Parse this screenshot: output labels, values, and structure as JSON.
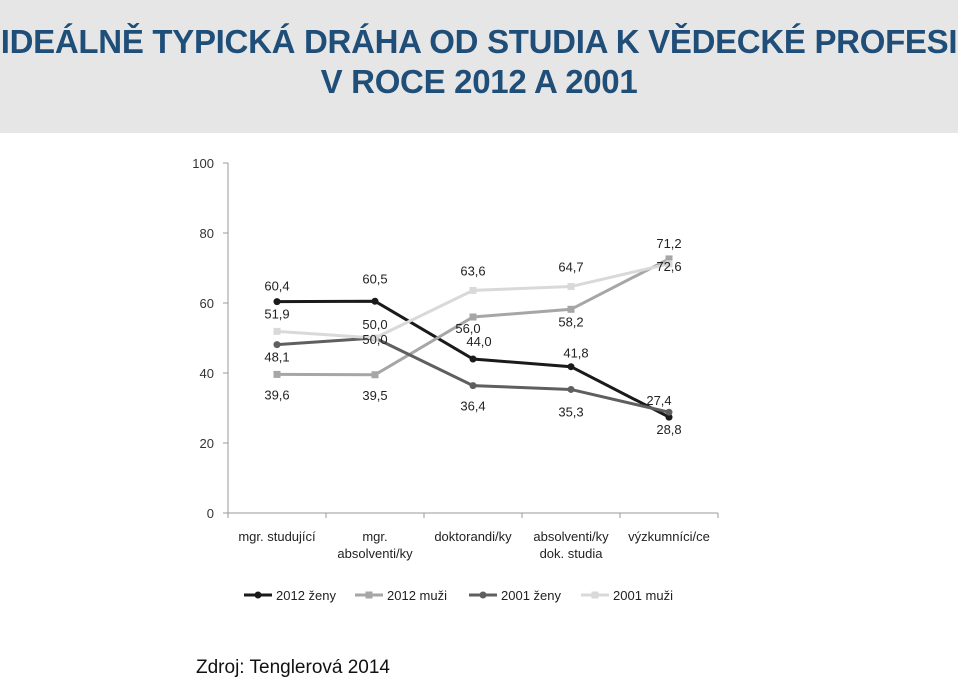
{
  "title": {
    "line1": "IDEÁLNĚ TYPICKÁ DRÁHA OD STUDIA K VĚDECKÉ PROFESI",
    "line2": "V ROCE 2012 A 2001"
  },
  "source": "Zdroj: Tenglerová 2014",
  "colors": {
    "header_bg": "#e6e6e6",
    "title": "#1f4e79",
    "series_2012_zeny": "#1a1a1a",
    "series_2012_muzi": "#a6a6a6",
    "series_2001_zeny": "#5f5f5f",
    "series_2001_muzi": "#d9d9d9"
  },
  "chart_data": {
    "type": "line",
    "title": "IDEÁLNĚ TYPICKÁ DRÁHA OD STUDIA K VĚDECKÉ PROFESI V ROCE 2012 A 2001",
    "xlabel": "",
    "ylabel": "",
    "ylim": [
      0,
      100
    ],
    "yticks": [
      0,
      20,
      40,
      60,
      80,
      100
    ],
    "grid": false,
    "legend": "bottom",
    "categories": [
      [
        "mgr. studující"
      ],
      [
        "mgr.",
        "absolventi/ky"
      ],
      [
        "doktorandi/ky"
      ],
      [
        "absolventi/ky",
        "dok. studia"
      ],
      [
        "výzkumníci/ce"
      ]
    ],
    "series": [
      {
        "name": "2012 ženy",
        "marker": "circle",
        "values": [
          60.4,
          60.5,
          44.0,
          41.8,
          27.4
        ],
        "labels": [
          "60,4",
          "60,5",
          "44,0",
          "41,8",
          "27,4"
        ]
      },
      {
        "name": "2012 muži",
        "marker": "square",
        "values": [
          39.6,
          39.5,
          56.0,
          58.2,
          72.6
        ],
        "labels": [
          "39,6",
          "39,5",
          "56,0",
          "58,2",
          "72,6"
        ]
      },
      {
        "name": "2001 ženy",
        "marker": "circle",
        "values": [
          48.1,
          50.0,
          36.4,
          35.3,
          28.8
        ],
        "labels": [
          "48,1",
          "50,0",
          "36,4",
          "35,3",
          "28,8"
        ]
      },
      {
        "name": "2001 muži",
        "marker": "square",
        "values": [
          51.9,
          50.0,
          63.6,
          64.7,
          71.2
        ],
        "labels": [
          "51,9",
          "50,0",
          "63,6",
          "64,7",
          "71,2"
        ]
      }
    ]
  }
}
